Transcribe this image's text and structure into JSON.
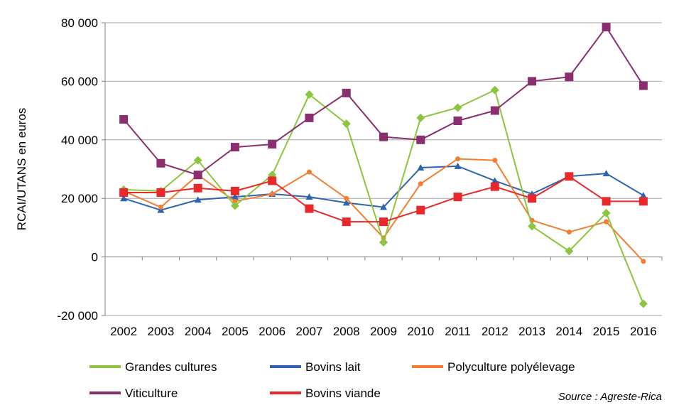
{
  "chart_data": {
    "type": "line",
    "ylabel": "RCAI/UTANS en euros",
    "ylim": [
      -20000,
      80000
    ],
    "yticks": [
      -20000,
      0,
      20000,
      40000,
      60000,
      80000
    ],
    "ytick_labels": [
      "-20 000",
      "0",
      "20 000",
      "40 000",
      "60 000",
      "80 000"
    ],
    "x": [
      "2002",
      "2003",
      "2004",
      "2005",
      "2006",
      "2007",
      "2008",
      "2009",
      "2010",
      "2011",
      "2012",
      "2013",
      "2014",
      "2015",
      "2016"
    ],
    "grid": "horizontal",
    "legend_position": "bottom",
    "series": [
      {
        "name": "Grandes cultures",
        "color": "#8cc63e",
        "marker": "diamond",
        "values": [
          23000,
          22500,
          33000,
          17500,
          28000,
          55500,
          45500,
          5000,
          47500,
          51000,
          57000,
          10500,
          2000,
          15000,
          -16000
        ]
      },
      {
        "name": "Bovins lait",
        "color": "#2e63b0",
        "marker": "triangle",
        "values": [
          20000,
          16000,
          19500,
          20500,
          21500,
          20500,
          18500,
          17000,
          30500,
          31000,
          26000,
          21500,
          27500,
          28500,
          21000
        ]
      },
      {
        "name": "Polyculture polyélevage",
        "color": "#f47d2f",
        "marker": "circle",
        "values": [
          22500,
          17000,
          28000,
          19000,
          21500,
          29000,
          20000,
          6500,
          25000,
          33500,
          33000,
          12500,
          8500,
          12000,
          -1500
        ]
      },
      {
        "name": "Viticulture",
        "color": "#8b2e6f",
        "marker": "square",
        "values": [
          47000,
          32000,
          28000,
          37500,
          38500,
          47500,
          56000,
          41000,
          40000,
          46500,
          50000,
          60000,
          61500,
          78500,
          58500
        ]
      },
      {
        "name": "Bovins viande",
        "color": "#e8282a",
        "marker": "square",
        "values": [
          22000,
          22000,
          23500,
          22500,
          26000,
          16500,
          12000,
          12000,
          16000,
          20500,
          24000,
          20000,
          27500,
          19000,
          19000
        ]
      }
    ],
    "legend_order": [
      "Grandes cultures",
      "Bovins lait",
      "Polyculture polyélevage",
      "Viticulture",
      "Bovins viande"
    ],
    "source": "Source : Agreste-Rica"
  }
}
